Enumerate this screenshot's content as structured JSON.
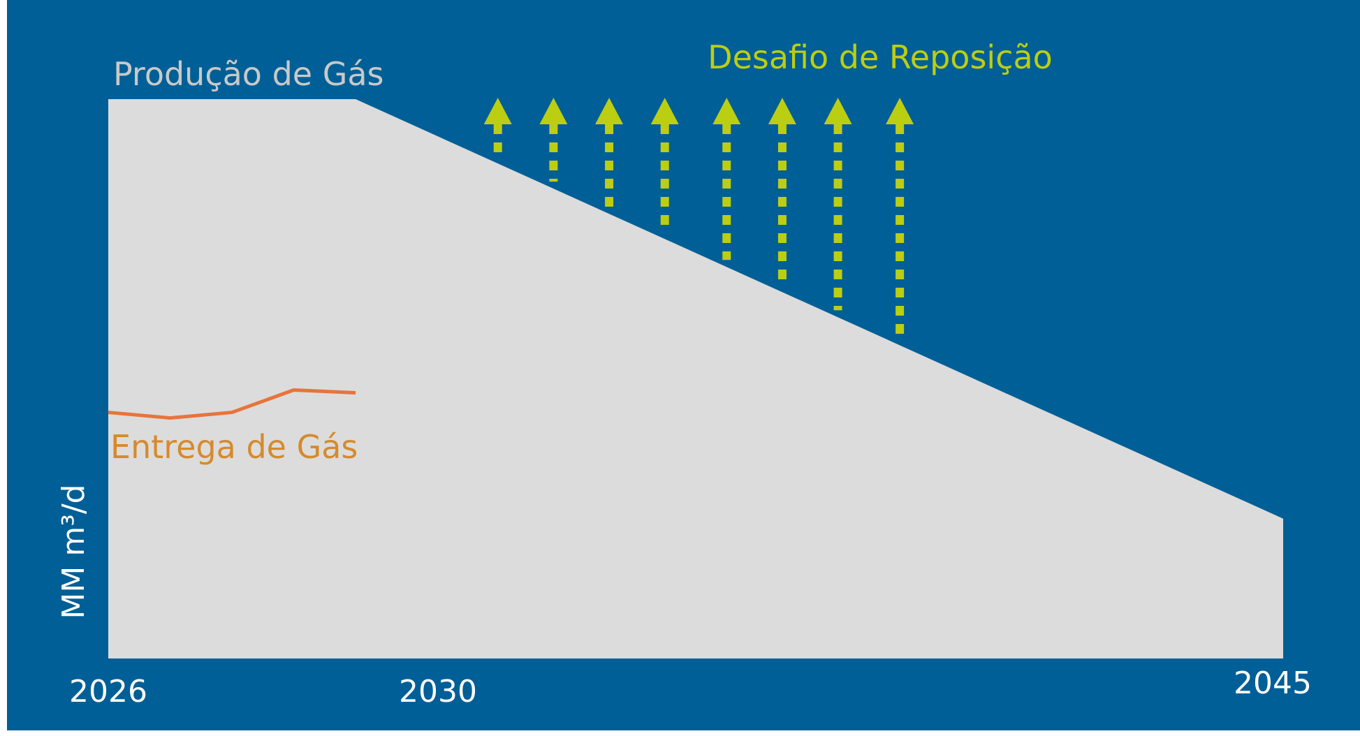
{
  "colors": {
    "background": "#005f96",
    "frame": "#ffffff",
    "production_area": "#dcdcdc",
    "delivery_line": "#e8743b",
    "delivery_label": "#d68a2c",
    "challenge_arrows": "#bcce12",
    "production_label": "#c9c9c9",
    "axis_text": "#ffffff"
  },
  "chart_data": {
    "type": "area",
    "ylabel": "MM m³/d",
    "x_tick_labels": [
      "2026",
      "2030",
      "2045"
    ],
    "xlim": [
      2026,
      2045
    ],
    "ylim": [
      0,
      100
    ],
    "grid": false,
    "series": [
      {
        "name": "Produção de Gás",
        "type": "area",
        "x": [
          2026,
          2030,
          2045
        ],
        "y": [
          100,
          100,
          25
        ]
      },
      {
        "name": "Entrega de Gás",
        "type": "line",
        "x": [
          2026,
          2027,
          2028,
          2029,
          2030
        ],
        "y": [
          44,
          43,
          44,
          48,
          47.5
        ]
      }
    ],
    "annotations": [
      {
        "text": "Desafio de Reposição",
        "type": "arrows",
        "arrow_x": [
          2032.3,
          2033.2,
          2034.1,
          2035,
          2036,
          2036.9,
          2037.8,
          2038.8
        ]
      }
    ]
  }
}
